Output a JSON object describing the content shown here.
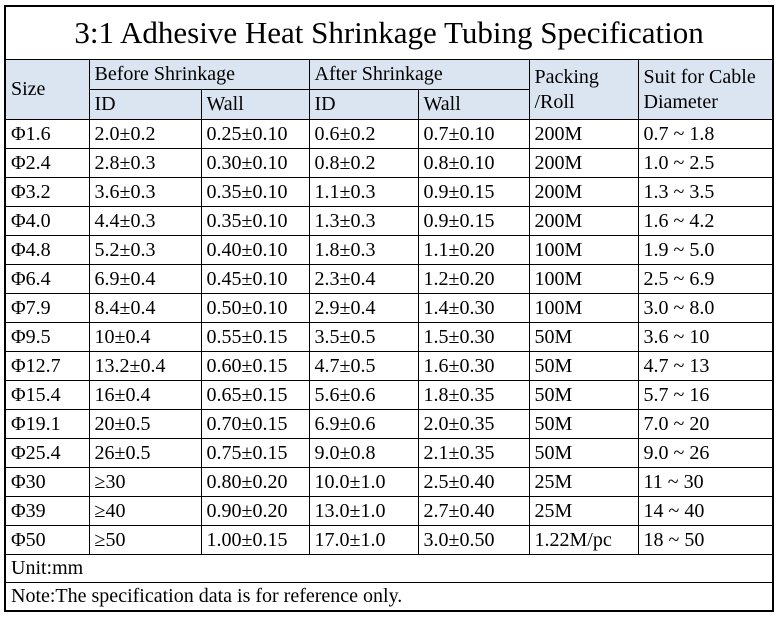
{
  "title": "3:1 Adhesive Heat Shrinkage Tubing Specification",
  "colors": {
    "header_bg": "#dbe5f1",
    "border": "#000000",
    "text": "#000000",
    "background": "#ffffff"
  },
  "table": {
    "headers": {
      "size": "Size",
      "before_group": "Before Shrinkage",
      "after_group": "After Shrinkage",
      "before_id": "ID",
      "before_wall": "Wall",
      "after_id": "ID",
      "after_wall": "Wall",
      "packing_line1": "Packing",
      "packing_line2": "/Roll",
      "suit_line1": "Suit for Cable",
      "suit_line2": "Diameter"
    },
    "rows": [
      {
        "size": "Φ1.6",
        "before_id": "2.0±0.2",
        "before_wall": "0.25±0.10",
        "after_id": "0.6±0.2",
        "after_wall": "0.7±0.10",
        "packing": "200M",
        "cable": "0.7 ~ 1.8"
      },
      {
        "size": "Φ2.4",
        "before_id": "2.8±0.3",
        "before_wall": "0.30±0.10",
        "after_id": "0.8±0.2",
        "after_wall": "0.8±0.10",
        "packing": "200M",
        "cable": "1.0 ~ 2.5"
      },
      {
        "size": "Φ3.2",
        "before_id": "3.6±0.3",
        "before_wall": "0.35±0.10",
        "after_id": "1.1±0.3",
        "after_wall": "0.9±0.15",
        "packing": "200M",
        "cable": "1.3 ~ 3.5"
      },
      {
        "size": "Φ4.0",
        "before_id": "4.4±0.3",
        "before_wall": "0.35±0.10",
        "after_id": "1.3±0.3",
        "after_wall": "0.9±0.15",
        "packing": "200M",
        "cable": "1.6 ~ 4.2"
      },
      {
        "size": "Φ4.8",
        "before_id": "5.2±0.3",
        "before_wall": "0.40±0.10",
        "after_id": "1.8±0.3",
        "after_wall": "1.1±0.20",
        "packing": "100M",
        "cable": "1.9 ~ 5.0"
      },
      {
        "size": "Φ6.4",
        "before_id": "6.9±0.4",
        "before_wall": "0.45±0.10",
        "after_id": "2.3±0.4",
        "after_wall": "1.2±0.20",
        "packing": "100M",
        "cable": "2.5 ~ 6.9"
      },
      {
        "size": "Φ7.9",
        "before_id": "8.4±0.4",
        "before_wall": "0.50±0.10",
        "after_id": "2.9±0.4",
        "after_wall": "1.4±0.30",
        "packing": "100M",
        "cable": "3.0 ~ 8.0"
      },
      {
        "size": "Φ9.5",
        "before_id": "10±0.4",
        "before_wall": "0.55±0.15",
        "after_id": "3.5±0.5",
        "after_wall": "1.5±0.30",
        "packing": "50M",
        "cable": "3.6 ~ 10"
      },
      {
        "size": "Φ12.7",
        "before_id": "13.2±0.4",
        "before_wall": "0.60±0.15",
        "after_id": "4.7±0.5",
        "after_wall": "1.6±0.30",
        "packing": "50M",
        "cable": "4.7 ~ 13"
      },
      {
        "size": "Φ15.4",
        "before_id": "16±0.4",
        "before_wall": "0.65±0.15",
        "after_id": "5.6±0.6",
        "after_wall": "1.8±0.35",
        "packing": "50M",
        "cable": "5.7 ~ 16"
      },
      {
        "size": "Φ19.1",
        "before_id": "20±0.5",
        "before_wall": "0.70±0.15",
        "after_id": "6.9±0.6",
        "after_wall": "2.0±0.35",
        "packing": "50M",
        "cable": "7.0 ~ 20"
      },
      {
        "size": "Φ25.4",
        "before_id": "26±0.5",
        "before_wall": "0.75±0.15",
        "after_id": "9.0±0.8",
        "after_wall": "2.1±0.35",
        "packing": "50M",
        "cable": "9.0 ~ 26"
      },
      {
        "size": "Φ30",
        "before_id": "≥30",
        "before_wall": "0.80±0.20",
        "after_id": "10.0±1.0",
        "after_wall": "2.5±0.40",
        "packing": "25M",
        "cable": "11 ~ 30"
      },
      {
        "size": "Φ39",
        "before_id": "≥40",
        "before_wall": "0.90±0.20",
        "after_id": "13.0±1.0",
        "after_wall": "2.7±0.40",
        "packing": "25M",
        "cable": "14 ~ 40"
      },
      {
        "size": "Φ50",
        "before_id": "≥50",
        "before_wall": "1.00±0.15",
        "after_id": "17.0±1.0",
        "after_wall": "3.0±0.50",
        "packing": "1.22M/pc",
        "cable": "18 ~ 50"
      }
    ],
    "unit": "Unit:mm",
    "note": "Note:The specification data is for reference only."
  }
}
